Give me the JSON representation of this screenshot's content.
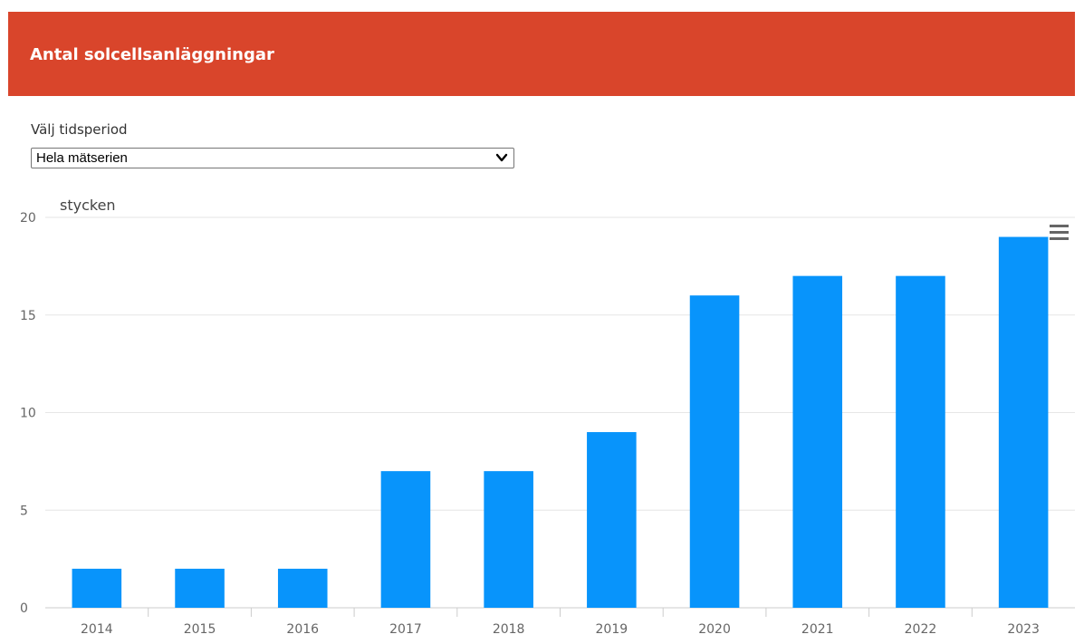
{
  "header": {
    "title": "Antal solcellsanläggningar"
  },
  "period": {
    "label": "Välj tidsperiod",
    "selected": "Hela mätserien"
  },
  "icons": {
    "menu": "hamburger-menu-icon",
    "dropdown": "chevron-down-icon"
  },
  "colors": {
    "header_bg": "#d9452b",
    "bar": "#0894fb"
  },
  "chart_data": {
    "type": "bar",
    "title": "",
    "xlabel": "",
    "ylabel": "stycken",
    "categories": [
      "2014",
      "2015",
      "2016",
      "2017",
      "2018",
      "2019",
      "2020",
      "2021",
      "2022",
      "2023"
    ],
    "values": [
      2,
      2,
      2,
      7,
      7,
      9,
      16,
      17,
      17,
      19
    ],
    "ylim": [
      0,
      20
    ],
    "yticks": [
      0,
      5,
      10,
      15,
      20
    ],
    "grid": true,
    "legend": "none"
  }
}
